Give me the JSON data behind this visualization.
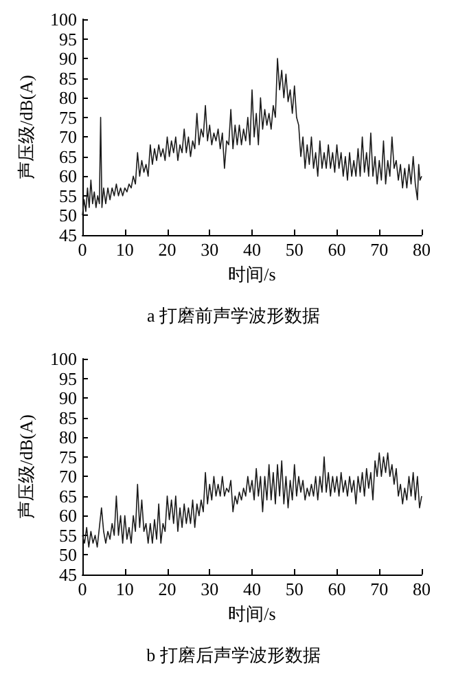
{
  "chart_data": [
    {
      "type": "line",
      "title": "a 打磨前声学波形数据",
      "xlabel": "时间/s",
      "ylabel": "声压级/dB(A)",
      "xlim": [
        0,
        80
      ],
      "ylim": [
        45,
        100
      ],
      "xticks": [
        0,
        10,
        20,
        30,
        40,
        50,
        60,
        70,
        80
      ],
      "yticks": [
        45,
        50,
        55,
        60,
        65,
        70,
        75,
        80,
        85,
        90,
        95,
        100
      ],
      "series": [
        {
          "color": "#1a1a1a",
          "x": [
            0,
            0.4,
            0.8,
            1.2,
            1.6,
            2,
            2.4,
            2.8,
            3.2,
            3.6,
            4,
            4.3,
            4.6,
            5,
            5.5,
            6,
            6.5,
            7,
            7.5,
            8,
            8.5,
            9,
            9.5,
            10,
            10.5,
            11,
            11.5,
            12,
            12.5,
            13,
            13.5,
            14,
            14.5,
            15,
            15.5,
            16,
            16.5,
            17,
            17.5,
            18,
            18.5,
            19,
            19.5,
            20,
            20.5,
            21,
            21.5,
            22,
            22.5,
            23,
            23.5,
            24,
            24.5,
            25,
            25.5,
            26,
            26.5,
            27,
            27.5,
            28,
            28.5,
            29,
            29.5,
            30,
            30.5,
            31,
            31.5,
            32,
            32.5,
            33,
            33.5,
            34,
            34.5,
            35,
            35.5,
            36,
            36.5,
            37,
            37.5,
            38,
            38.5,
            39,
            39.5,
            40,
            40.5,
            41,
            41.5,
            42,
            42.5,
            43,
            43.5,
            44,
            44.5,
            45,
            45.5,
            46,
            46.5,
            47,
            47.5,
            48,
            48.5,
            49,
            49.5,
            50,
            50.5,
            51,
            51.5,
            52,
            52.5,
            53,
            53.5,
            54,
            54.5,
            55,
            55.5,
            56,
            56.5,
            57,
            57.5,
            58,
            58.5,
            59,
            59.5,
            60,
            60.5,
            61,
            61.5,
            62,
            62.5,
            63,
            63.5,
            64,
            64.5,
            65,
            65.5,
            66,
            66.5,
            67,
            67.5,
            68,
            68.5,
            69,
            69.5,
            70,
            70.5,
            71,
            71.5,
            72,
            72.5,
            73,
            73.5,
            74,
            74.5,
            75,
            75.5,
            76,
            76.5,
            77,
            77.5,
            78,
            78.5,
            79,
            79.3,
            79.6,
            80
          ],
          "values": [
            50,
            54,
            51,
            57,
            52,
            59,
            53,
            56,
            52,
            55,
            53,
            75,
            52,
            57,
            53,
            57,
            54,
            57,
            55,
            58,
            55,
            57,
            55,
            57,
            56,
            58,
            57,
            60,
            58,
            66,
            60,
            64,
            61,
            63,
            60,
            68,
            63,
            67,
            64,
            68,
            65,
            67,
            64,
            70,
            65,
            69,
            66,
            70,
            64,
            68,
            66,
            72,
            66,
            70,
            65,
            69,
            67,
            76,
            68,
            72,
            70,
            78,
            69,
            73,
            68,
            71,
            69,
            72,
            67,
            71,
            62,
            69,
            68,
            77,
            67,
            73,
            68,
            73,
            68,
            72,
            69,
            75,
            68,
            82,
            70,
            76,
            68,
            80,
            72,
            77,
            73,
            76,
            72,
            78,
            75,
            90,
            82,
            87,
            80,
            86,
            79,
            82,
            76,
            83,
            75,
            73,
            65,
            70,
            62,
            68,
            63,
            70,
            62,
            66,
            60,
            69,
            62,
            66,
            62,
            68,
            62,
            66,
            61,
            68,
            62,
            66,
            60,
            65,
            59,
            66,
            60,
            64,
            60,
            67,
            60,
            70,
            61,
            66,
            60,
            71,
            60,
            65,
            58,
            64,
            59,
            69,
            58,
            64,
            60,
            70,
            62,
            64,
            59,
            63,
            57,
            62,
            57,
            63,
            58,
            65,
            58,
            54,
            63,
            59,
            60
          ]
        }
      ]
    },
    {
      "type": "line",
      "title": "b 打磨后声学波形数据",
      "xlabel": "时间/s",
      "ylabel": "声压级/dB(A)",
      "xlim": [
        0,
        80
      ],
      "ylim": [
        45,
        100
      ],
      "xticks": [
        0,
        10,
        20,
        30,
        40,
        50,
        60,
        70,
        80
      ],
      "yticks": [
        45,
        50,
        55,
        60,
        65,
        70,
        75,
        80,
        85,
        90,
        95,
        100
      ],
      "series": [
        {
          "color": "#1a1a1a",
          "x": [
            0,
            0.5,
            1,
            1.5,
            2,
            2.5,
            3,
            3.5,
            4,
            4.5,
            5,
            5.5,
            6,
            6.5,
            7,
            7.5,
            8,
            8.5,
            9,
            9.5,
            10,
            10.5,
            11,
            11.5,
            12,
            12.5,
            13,
            13.5,
            14,
            14.5,
            15,
            15.5,
            16,
            16.5,
            17,
            17.5,
            18,
            18.5,
            19,
            19.5,
            20,
            20.5,
            21,
            21.5,
            22,
            22.5,
            23,
            23.5,
            24,
            24.5,
            25,
            25.5,
            26,
            26.5,
            27,
            27.5,
            28,
            28.5,
            29,
            29.5,
            30,
            30.5,
            31,
            31.5,
            32,
            32.5,
            33,
            33.5,
            34,
            34.5,
            35,
            35.5,
            36,
            36.5,
            37,
            37.5,
            38,
            38.5,
            39,
            39.5,
            40,
            40.5,
            41,
            41.5,
            42,
            42.5,
            43,
            43.5,
            44,
            44.5,
            45,
            45.5,
            46,
            46.5,
            47,
            47.5,
            48,
            48.5,
            49,
            49.5,
            50,
            50.5,
            51,
            51.5,
            52,
            52.5,
            53,
            53.5,
            54,
            54.5,
            55,
            55.5,
            56,
            56.5,
            57,
            57.5,
            58,
            58.5,
            59,
            59.5,
            60,
            60.5,
            61,
            61.5,
            62,
            62.5,
            63,
            63.5,
            64,
            64.5,
            65,
            65.5,
            66,
            66.5,
            67,
            67.5,
            68,
            68.5,
            69,
            69.5,
            70,
            70.5,
            71,
            71.5,
            72,
            72.5,
            73,
            73.5,
            74,
            74.5,
            75,
            75.5,
            76,
            76.5,
            77,
            77.5,
            78,
            78.5,
            79,
            79.5,
            80
          ],
          "values": [
            55,
            53,
            57,
            52,
            56,
            53,
            55,
            52,
            57,
            62,
            56,
            53,
            56,
            54,
            58,
            55,
            65,
            55,
            60,
            53,
            60,
            54,
            57,
            53,
            60,
            56,
            68,
            57,
            64,
            56,
            58,
            53,
            58,
            53,
            59,
            54,
            63,
            53,
            58,
            56,
            65,
            59,
            64,
            58,
            65,
            56,
            62,
            57,
            63,
            58,
            62,
            58,
            64,
            57,
            63,
            60,
            64,
            61,
            71,
            63,
            68,
            64,
            70,
            65,
            68,
            65,
            70,
            65,
            67,
            66,
            69,
            61,
            65,
            63,
            66,
            64,
            67,
            65,
            70,
            66,
            69,
            64,
            72,
            65,
            70,
            61,
            70,
            64,
            73,
            64,
            71,
            63,
            73,
            65,
            74,
            63,
            70,
            62,
            69,
            64,
            73,
            65,
            70,
            66,
            69,
            64,
            67,
            65,
            68,
            65,
            70,
            64,
            70,
            66,
            75,
            66,
            71,
            65,
            70,
            66,
            70,
            65,
            71,
            66,
            69,
            65,
            70,
            66,
            69,
            63,
            70,
            66,
            71,
            65,
            72,
            67,
            71,
            64,
            74,
            70,
            76,
            70,
            75,
            71,
            76,
            70,
            73,
            68,
            72,
            65,
            68,
            63,
            67,
            64,
            70,
            65,
            71,
            64,
            70,
            62,
            65
          ]
        }
      ]
    }
  ]
}
